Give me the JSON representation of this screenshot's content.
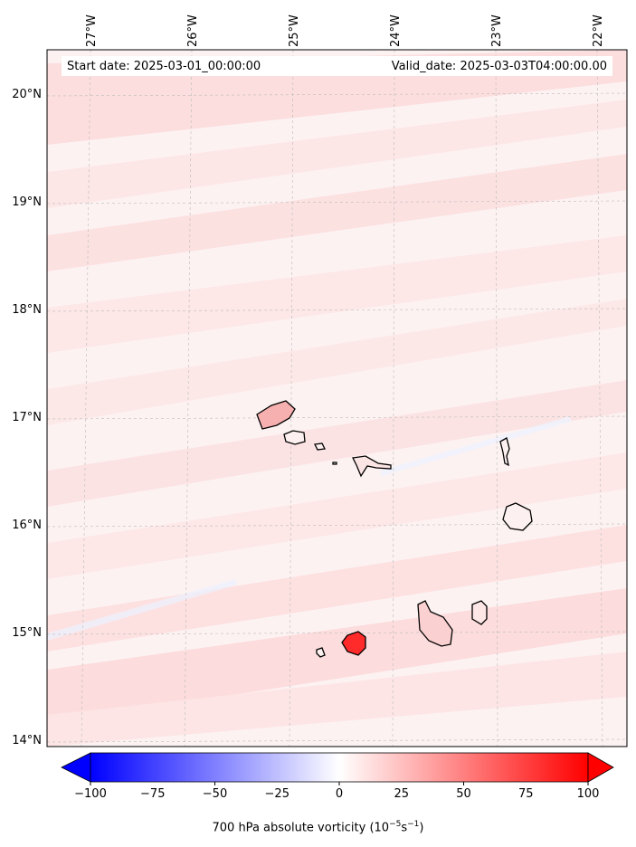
{
  "map": {
    "start_date": "Start date: 2025-03-01_00:00:00",
    "valid_date": "Valid_date: 2025-03-03T04:00:00.00",
    "lat_labels": [
      "20°N",
      "19°N",
      "18°N",
      "17°N",
      "16°N",
      "15°N",
      "14°N"
    ],
    "lon_labels": [
      "27°W",
      "26°W",
      "25°W",
      "24°W",
      "23°W",
      "22°W"
    ],
    "land_outline_color": "#000000",
    "background_tint": "#fdeaea"
  },
  "colorbar": {
    "ticks": [
      "−100",
      "−75",
      "−50",
      "−25",
      "0",
      "25",
      "50",
      "75",
      "100"
    ],
    "title": "700 hPa absolute vorticity (10",
    "title_exp1": "−5",
    "title_mid": "s",
    "title_exp2": "−1",
    "title_end": ")",
    "min_color": "#0000ff",
    "mid_color": "#ffffff",
    "max_color": "#ff0000"
  }
}
